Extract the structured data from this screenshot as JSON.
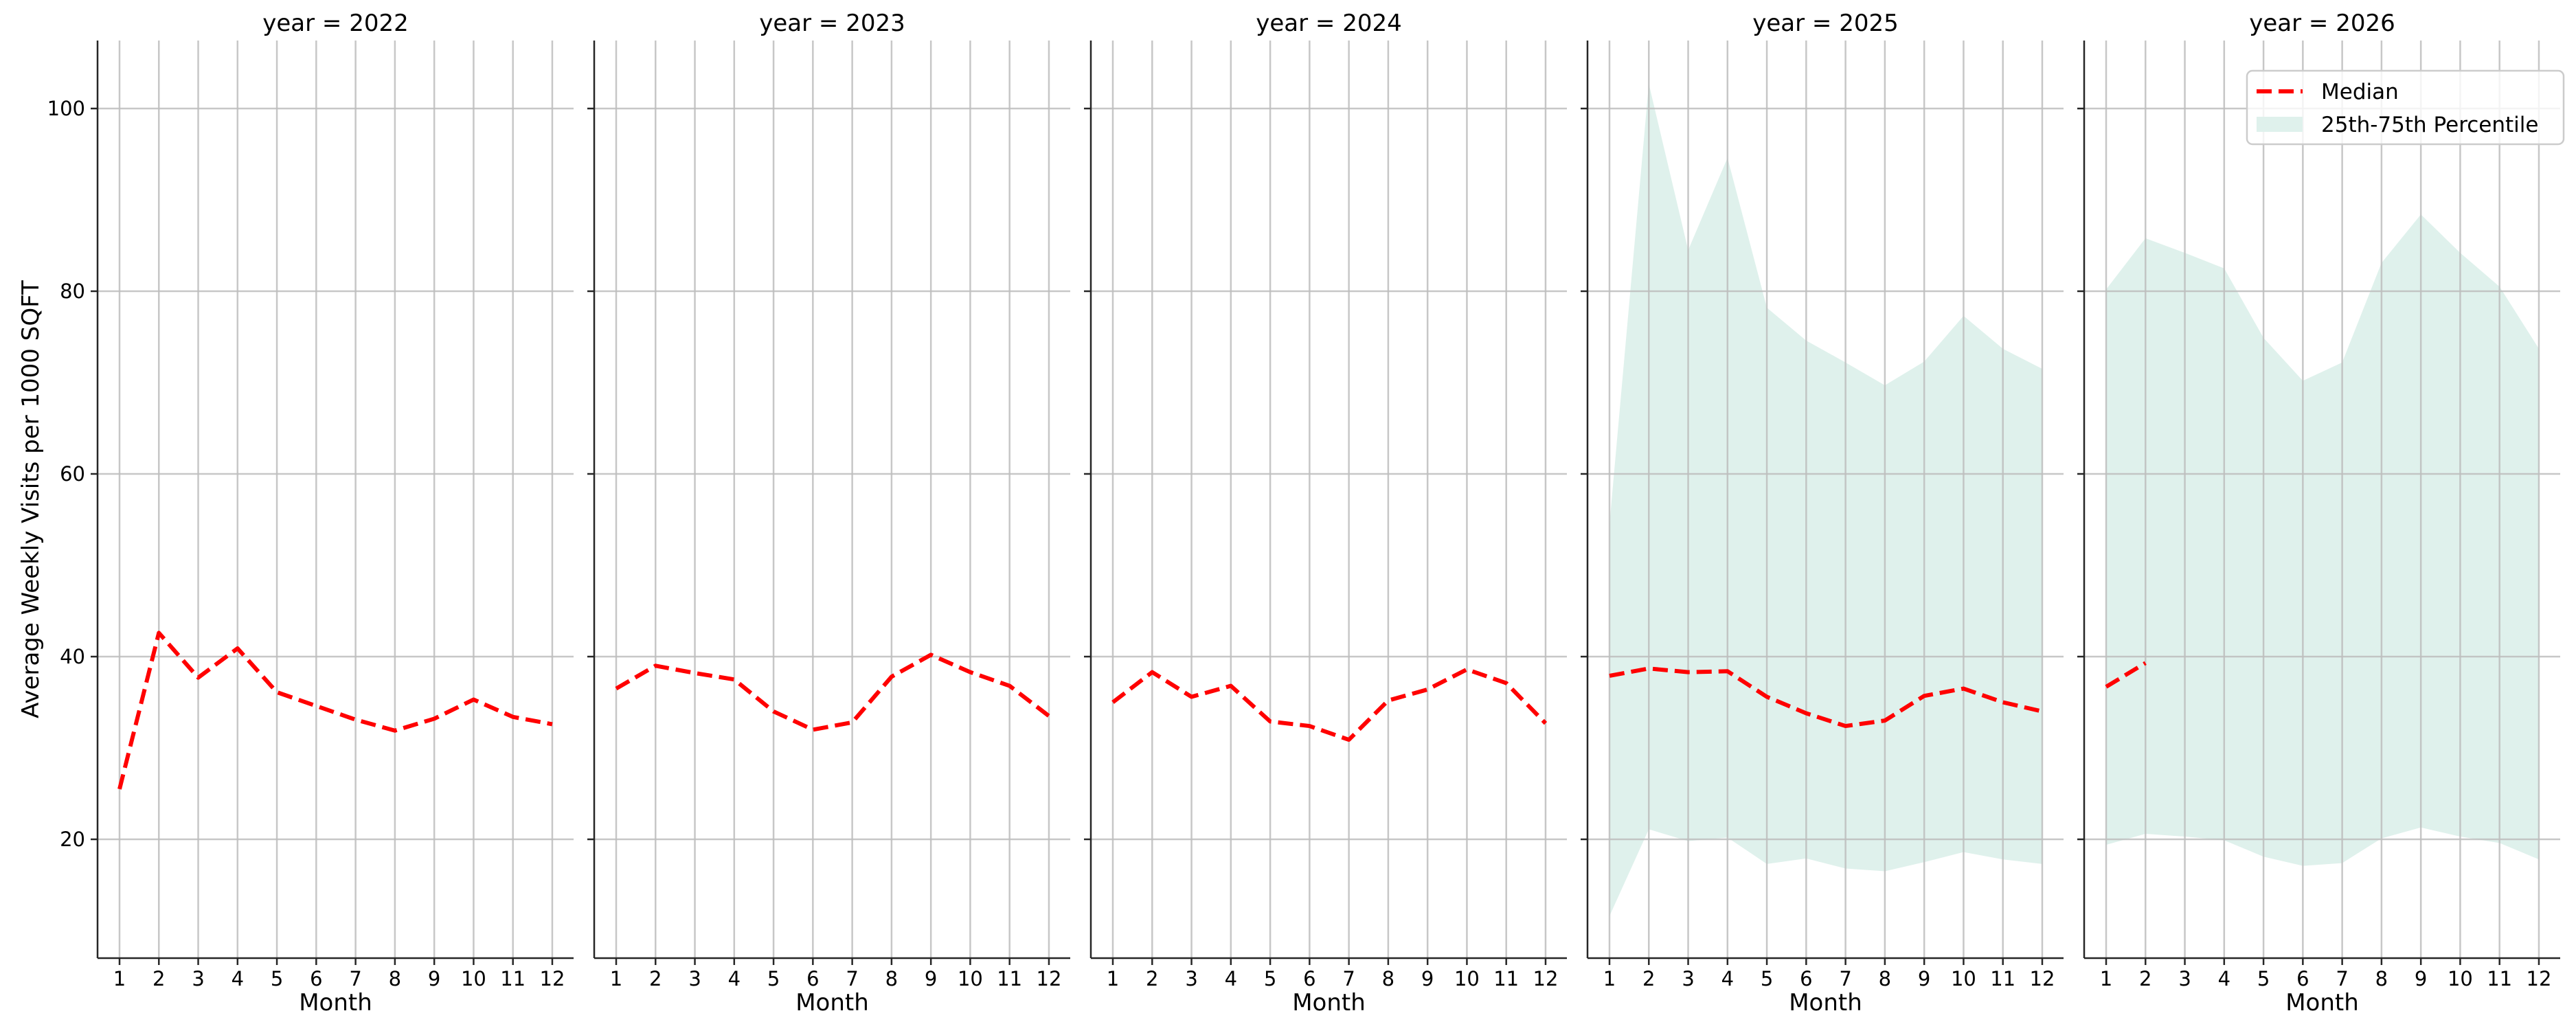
{
  "chart_data": {
    "type": "line",
    "layout": "facet-grid-1x5",
    "ylabel": "Average Weekly Visits per 1000 SQFT",
    "xlabel": "Month",
    "x": [
      1,
      2,
      3,
      4,
      5,
      6,
      7,
      8,
      9,
      10,
      11,
      12
    ],
    "xticks": [
      "1",
      "2",
      "3",
      "4",
      "5",
      "6",
      "7",
      "8",
      "9",
      "10",
      "11",
      "12"
    ],
    "yticks": [
      20,
      40,
      60,
      80,
      100
    ],
    "ylim": [
      6.8,
      107.4
    ],
    "grid": true,
    "legend": {
      "position": "upper right (last panel)",
      "entries": [
        {
          "label": "Median",
          "style": "dashed-line",
          "color": "#ff0000"
        },
        {
          "label": "25th-75th Percentile",
          "style": "filled-area",
          "color": "#dff1ec"
        }
      ]
    },
    "colors": {
      "median": "#ff0000",
      "band": "#dff1ec",
      "grid": "#bdbdbd",
      "spine": "#262626"
    },
    "panels": [
      {
        "title": "year = 2022",
        "median": [
          25.5,
          42.6,
          37.7,
          40.9,
          36.1,
          34.6,
          33.1,
          31.9,
          33.2,
          35.3,
          33.4,
          32.6
        ],
        "p25": null,
        "p75": null
      },
      {
        "title": "year = 2023",
        "median": [
          36.5,
          39.0,
          38.2,
          37.5,
          34.0,
          32.0,
          32.8,
          37.8,
          40.2,
          38.3,
          36.8,
          33.5
        ],
        "p25": null,
        "p75": null
      },
      {
        "title": "year = 2024",
        "median": [
          35.0,
          38.3,
          35.6,
          36.8,
          32.9,
          32.4,
          30.9,
          35.2,
          36.4,
          38.6,
          37.1,
          32.7
        ],
        "p25": null,
        "p75": null
      },
      {
        "title": "year = 2025",
        "median": [
          37.9,
          38.7,
          38.3,
          38.4,
          35.6,
          33.8,
          32.4,
          33.0,
          35.7,
          36.5,
          35.0,
          34.0
        ],
        "p25": [
          11.6,
          21.1,
          19.8,
          20.2,
          17.3,
          17.9,
          16.8,
          16.5,
          17.5,
          18.6,
          17.8,
          17.3
        ],
        "p75": [
          54.5,
          102.7,
          84.5,
          94.6,
          78.2,
          74.6,
          72.2,
          69.7,
          72.3,
          77.3,
          73.7,
          71.5
        ]
      },
      {
        "title": "year = 2026",
        "median": [
          36.7,
          39.3,
          null,
          null,
          null,
          null,
          null,
          null,
          null,
          null,
          null,
          null
        ],
        "p25": [
          19.4,
          20.6,
          20.3,
          19.9,
          18.1,
          17.1,
          17.4,
          20.1,
          21.3,
          20.3,
          19.6,
          17.8
        ],
        "p75": [
          80.2,
          85.8,
          84.2,
          82.5,
          74.9,
          70.2,
          72.2,
          83.1,
          88.4,
          84.2,
          80.5,
          73.7
        ]
      }
    ]
  }
}
